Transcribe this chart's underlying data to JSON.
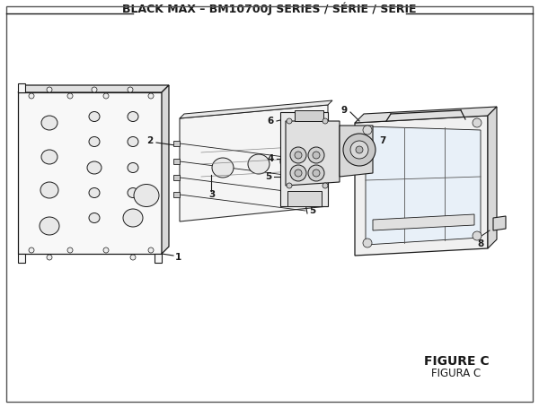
{
  "title": "BLACK MAX – BM10700J SERIES / SÉRIE / SERIE",
  "title_fontsize": 9,
  "background_color": "#ffffff",
  "border_color": "#333333",
  "figure_label": "FIGURE C",
  "figure_label2": "FIGURA C"
}
